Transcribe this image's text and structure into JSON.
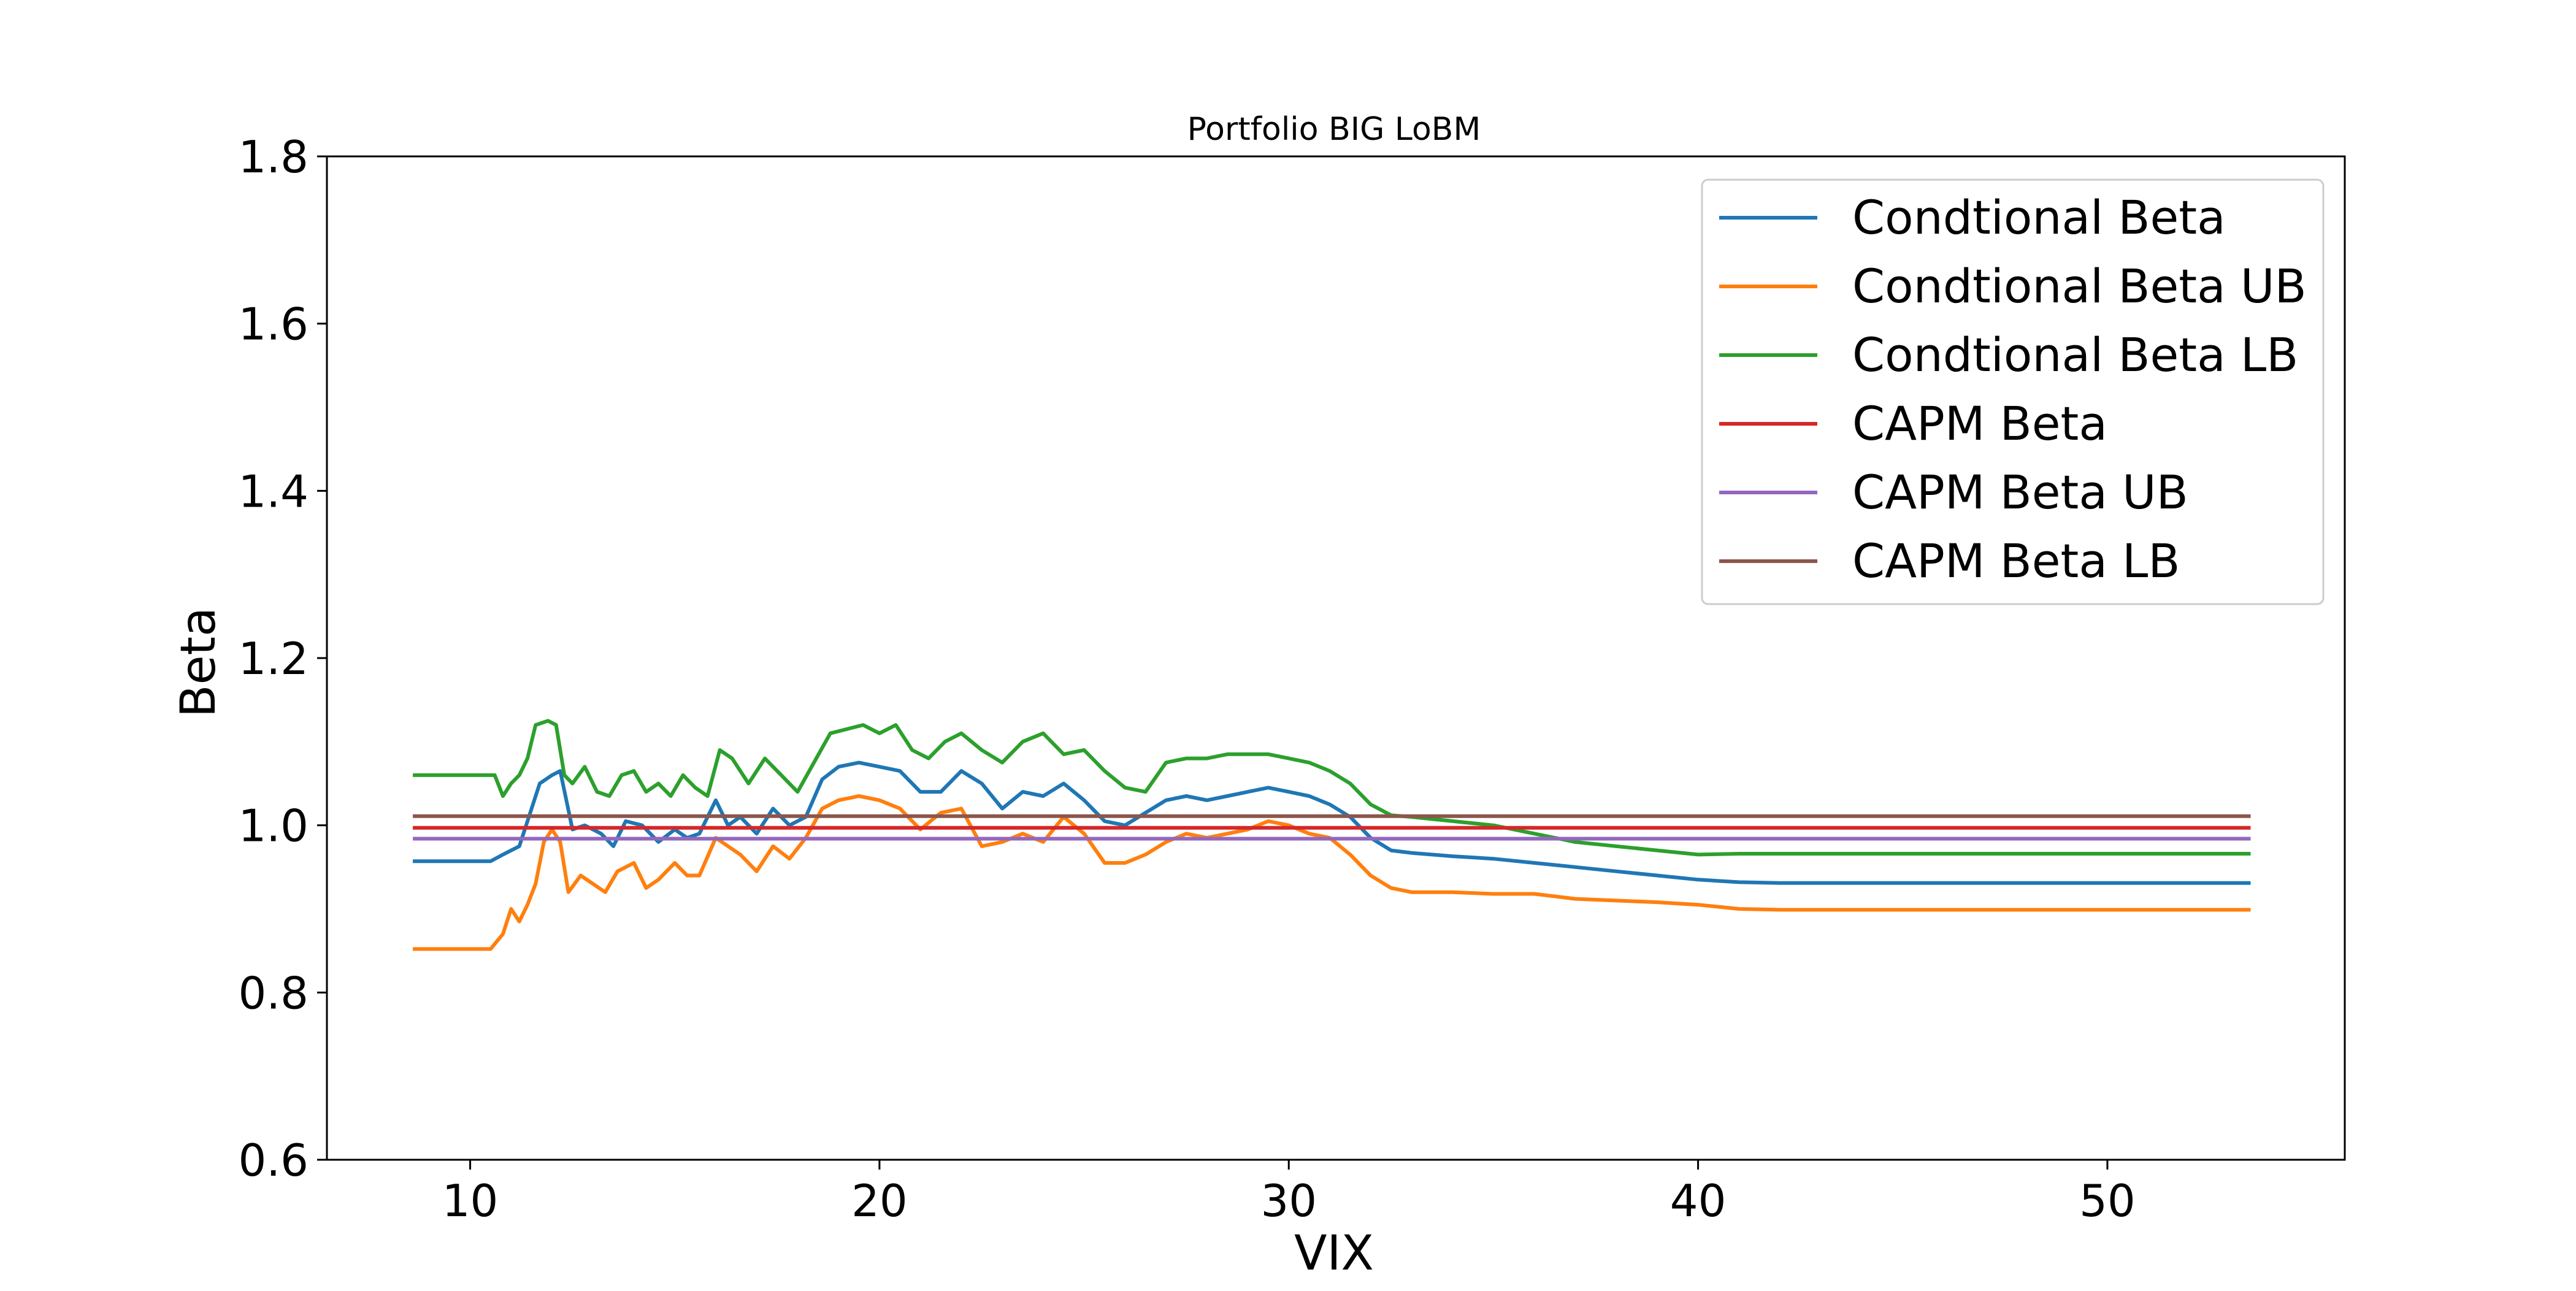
{
  "chart_data": {
    "type": "line",
    "title": "Portfolio BIG LoBM",
    "xlabel": "VIX",
    "ylabel": "Beta",
    "xlim": [
      6.5,
      55.8
    ],
    "ylim": [
      0.6,
      1.8
    ],
    "xticks": [
      10,
      20,
      30,
      40,
      50
    ],
    "yticks": [
      0.6,
      0.8,
      1.0,
      1.2,
      1.4,
      1.6,
      1.8
    ],
    "xtick_labels": [
      "10",
      "20",
      "30",
      "40",
      "50"
    ],
    "ytick_labels": [
      "0.6",
      "0.8",
      "1.0",
      "1.2",
      "1.4",
      "1.6",
      "1.8"
    ],
    "grid": false,
    "legend_position": "top-right",
    "series": [
      {
        "name": "Condtional Beta",
        "color": "#1f77b4",
        "x": [
          8.6,
          10.5,
          10.8,
          11.2,
          11.5,
          11.7,
          12.0,
          12.2,
          12.5,
          12.8,
          13.2,
          13.5,
          13.8,
          14.2,
          14.6,
          15.0,
          15.3,
          15.6,
          16.0,
          16.3,
          16.6,
          17.0,
          17.4,
          17.8,
          18.2,
          18.6,
          19.0,
          19.5,
          20.0,
          20.5,
          21.0,
          21.5,
          22.0,
          22.5,
          23.0,
          23.5,
          24.0,
          24.5,
          25.0,
          25.5,
          26.0,
          26.5,
          27.0,
          27.5,
          28.0,
          28.5,
          29.0,
          29.5,
          30.0,
          30.5,
          31.0,
          31.5,
          32.0,
          32.5,
          33.0,
          34.0,
          35.0,
          36.0,
          37.0,
          38.0,
          39.0,
          40.0,
          41.0,
          42.0,
          45.0,
          50.0,
          53.5
        ],
        "y": [
          0.957,
          0.957,
          0.965,
          0.975,
          1.02,
          1.05,
          1.06,
          1.065,
          0.995,
          1.0,
          0.99,
          0.975,
          1.005,
          1.0,
          0.98,
          0.995,
          0.985,
          0.99,
          1.03,
          1.0,
          1.01,
          0.99,
          1.02,
          1.0,
          1.01,
          1.055,
          1.07,
          1.075,
          1.07,
          1.065,
          1.04,
          1.04,
          1.065,
          1.05,
          1.02,
          1.04,
          1.035,
          1.05,
          1.03,
          1.005,
          1.0,
          1.015,
          1.03,
          1.035,
          1.03,
          1.035,
          1.04,
          1.045,
          1.04,
          1.035,
          1.025,
          1.01,
          0.985,
          0.97,
          0.967,
          0.963,
          0.96,
          0.955,
          0.95,
          0.945,
          0.94,
          0.935,
          0.932,
          0.931,
          0.931,
          0.931,
          0.931
        ]
      },
      {
        "name": "Condtional Beta UB",
        "color": "#ff7f0e",
        "x": [
          8.6,
          10.5,
          10.8,
          11.0,
          11.2,
          11.4,
          11.6,
          11.8,
          12.0,
          12.2,
          12.4,
          12.7,
          13.0,
          13.3,
          13.6,
          14.0,
          14.3,
          14.6,
          15.0,
          15.3,
          15.6,
          16.0,
          16.3,
          16.6,
          17.0,
          17.4,
          17.8,
          18.2,
          18.6,
          19.0,
          19.5,
          20.0,
          20.5,
          21.0,
          21.5,
          22.0,
          22.5,
          23.0,
          23.5,
          24.0,
          24.5,
          25.0,
          25.5,
          26.0,
          26.5,
          27.0,
          27.5,
          28.0,
          28.5,
          29.0,
          29.5,
          30.0,
          30.5,
          31.0,
          31.5,
          32.0,
          32.5,
          33.0,
          34.0,
          35.0,
          36.0,
          37.0,
          38.0,
          39.0,
          40.0,
          41.0,
          42.0,
          45.0,
          50.0,
          53.5
        ],
        "y": [
          0.852,
          0.852,
          0.87,
          0.9,
          0.885,
          0.905,
          0.93,
          0.98,
          0.995,
          0.98,
          0.92,
          0.94,
          0.93,
          0.92,
          0.945,
          0.955,
          0.925,
          0.935,
          0.955,
          0.94,
          0.94,
          0.985,
          0.975,
          0.965,
          0.945,
          0.975,
          0.96,
          0.985,
          1.02,
          1.03,
          1.035,
          1.03,
          1.02,
          0.995,
          1.015,
          1.02,
          0.975,
          0.98,
          0.99,
          0.98,
          1.01,
          0.99,
          0.955,
          0.955,
          0.965,
          0.98,
          0.99,
          0.985,
          0.99,
          0.995,
          1.005,
          1.0,
          0.99,
          0.985,
          0.965,
          0.94,
          0.925,
          0.92,
          0.92,
          0.918,
          0.918,
          0.912,
          0.91,
          0.908,
          0.905,
          0.9,
          0.899,
          0.899,
          0.899,
          0.899
        ]
      },
      {
        "name": "Condtional Beta LB",
        "color": "#2ca02c",
        "x": [
          8.6,
          10.6,
          10.8,
          11.0,
          11.2,
          11.4,
          11.6,
          11.9,
          12.1,
          12.3,
          12.5,
          12.8,
          13.1,
          13.4,
          13.7,
          14.0,
          14.3,
          14.6,
          14.9,
          15.2,
          15.5,
          15.8,
          16.1,
          16.4,
          16.8,
          17.2,
          17.6,
          18.0,
          18.4,
          18.8,
          19.2,
          19.6,
          20.0,
          20.4,
          20.8,
          21.2,
          21.6,
          22.0,
          22.5,
          23.0,
          23.5,
          24.0,
          24.5,
          25.0,
          25.5,
          26.0,
          26.5,
          27.0,
          27.5,
          28.0,
          28.5,
          29.0,
          29.5,
          30.0,
          30.5,
          31.0,
          31.5,
          32.0,
          32.5,
          33.0,
          34.0,
          35.0,
          36.0,
          37.0,
          38.0,
          39.0,
          40.0,
          41.0,
          45.0,
          50.0,
          53.5
        ],
        "y": [
          1.06,
          1.06,
          1.035,
          1.05,
          1.06,
          1.08,
          1.12,
          1.125,
          1.12,
          1.06,
          1.05,
          1.07,
          1.04,
          1.035,
          1.06,
          1.065,
          1.04,
          1.05,
          1.035,
          1.06,
          1.045,
          1.035,
          1.09,
          1.08,
          1.05,
          1.08,
          1.06,
          1.04,
          1.075,
          1.11,
          1.115,
          1.12,
          1.11,
          1.12,
          1.09,
          1.08,
          1.1,
          1.11,
          1.09,
          1.075,
          1.1,
          1.11,
          1.085,
          1.09,
          1.065,
          1.045,
          1.04,
          1.075,
          1.08,
          1.08,
          1.085,
          1.085,
          1.085,
          1.08,
          1.075,
          1.065,
          1.05,
          1.025,
          1.012,
          1.01,
          1.005,
          1.0,
          0.99,
          0.98,
          0.975,
          0.97,
          0.965,
          0.966,
          0.966,
          0.966,
          0.966
        ]
      },
      {
        "name": "CAPM Beta",
        "color": "#d62728",
        "x": [
          8.6,
          53.5
        ],
        "y": [
          0.997,
          0.997
        ]
      },
      {
        "name": "CAPM Beta UB",
        "color": "#9467bd",
        "x": [
          8.6,
          53.5
        ],
        "y": [
          0.984,
          0.984
        ]
      },
      {
        "name": "CAPM Beta LB",
        "color": "#8c564b",
        "x": [
          8.6,
          53.5
        ],
        "y": [
          1.011,
          1.011
        ]
      }
    ]
  }
}
